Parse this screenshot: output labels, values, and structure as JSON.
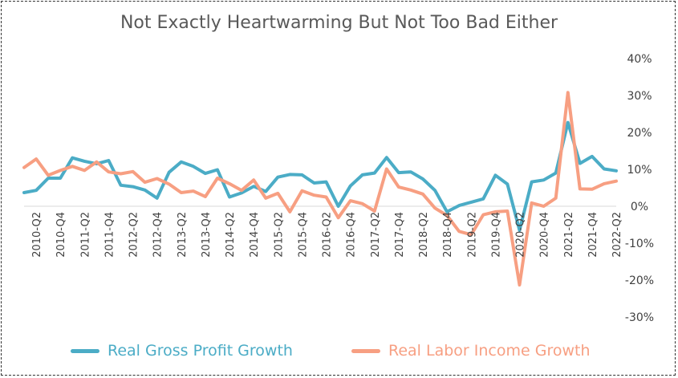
{
  "chart_data": {
    "type": "line",
    "title": "Not Exactly Heartwarming But Not Too Bad Either",
    "xlabel": "",
    "ylabel": "",
    "ylim": [
      -30,
      40
    ],
    "yticks": [
      "40%",
      "30%",
      "20%",
      "10%",
      "0%",
      "-10%",
      "-20%",
      "-30%"
    ],
    "y_axis_side": "right",
    "grid": false,
    "legend_position": "bottom",
    "categories": [
      "2010-Q1",
      "2010-Q2",
      "2010-Q3",
      "2010-Q4",
      "2011-Q1",
      "2011-Q2",
      "2011-Q3",
      "2011-Q4",
      "2012-Q1",
      "2012-Q2",
      "2012-Q3",
      "2012-Q4",
      "2013-Q1",
      "2013-Q2",
      "2013-Q3",
      "2013-Q4",
      "2014-Q1",
      "2014-Q2",
      "2014-Q3",
      "2014-Q4",
      "2015-Q1",
      "2015-Q2",
      "2015-Q3",
      "2015-Q4",
      "2016-Q1",
      "2016-Q2",
      "2016-Q3",
      "2016-Q4",
      "2017-Q1",
      "2017-Q2",
      "2017-Q3",
      "2017-Q4",
      "2018-Q1",
      "2018-Q2",
      "2018-Q3",
      "2018-Q4",
      "2019-Q1",
      "2019-Q2",
      "2019-Q3",
      "2019-Q4",
      "2020-Q1",
      "2020-Q2",
      "2020-Q3",
      "2020-Q4",
      "2021-Q1",
      "2021-Q2",
      "2021-Q3",
      "2021-Q4",
      "2022-Q1",
      "2022-Q2"
    ],
    "tick_labels": [
      "2010-Q2",
      "2010-Q4",
      "2011-Q2",
      "2011-Q4",
      "2012-Q2",
      "2012-Q4",
      "2013-Q2",
      "2013-Q4",
      "2014-Q2",
      "2014-Q4",
      "2015-Q2",
      "2015-Q4",
      "2016-Q2",
      "2016-Q4",
      "2017-Q2",
      "2017-Q4",
      "2018-Q2",
      "2018-Q4",
      "2019-Q2",
      "2019-Q4",
      "2020-Q2",
      "2020-Q4",
      "2021-Q2",
      "2021-Q4",
      "2022-Q2"
    ],
    "series": [
      {
        "name": "Real Gross Profit Growth",
        "color": "#4BACC6",
        "values": [
          3.7,
          4.3,
          7.6,
          7.6,
          13.1,
          12.2,
          11.5,
          12.4,
          5.7,
          5.3,
          4.4,
          2.2,
          9.2,
          12.0,
          10.8,
          8.9,
          9.9,
          2.5,
          3.6,
          5.4,
          4.0,
          7.9,
          8.6,
          8.5,
          6.3,
          6.6,
          0.0,
          5.5,
          8.5,
          9.0,
          13.2,
          9.1,
          9.3,
          7.4,
          4.3,
          -1.5,
          0.2,
          1.1,
          2.0,
          8.4,
          6.0,
          -6.5,
          6.6,
          7.1,
          9.0,
          22.7,
          11.6,
          13.5,
          10.1,
          9.6
        ]
      },
      {
        "name": "Real Labor Income Growth",
        "color": "#F79F82",
        "values": [
          10.5,
          12.8,
          8.4,
          9.7,
          10.8,
          9.7,
          12.0,
          9.3,
          8.8,
          9.4,
          6.5,
          7.5,
          6.0,
          3.7,
          4.1,
          2.6,
          7.6,
          6.1,
          4.3,
          7.1,
          2.2,
          3.5,
          -1.5,
          4.2,
          3.0,
          2.5,
          -3.1,
          1.5,
          0.7,
          -1.3,
          10.1,
          5.2,
          4.4,
          3.3,
          -0.5,
          -2.5,
          -6.8,
          -7.7,
          -2.3,
          -1.5,
          -1.3,
          -21.3,
          0.9,
          0.0,
          2.2,
          30.8,
          4.7,
          4.6,
          6.1,
          6.8
        ]
      }
    ]
  }
}
